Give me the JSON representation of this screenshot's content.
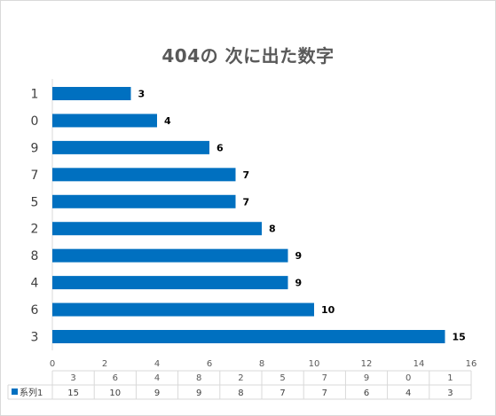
{
  "chart_data": {
    "type": "bar",
    "orientation": "horizontal",
    "title": "404の 次に出た数字",
    "categories": [
      "3",
      "6",
      "4",
      "8",
      "2",
      "5",
      "7",
      "9",
      "0",
      "1"
    ],
    "series": [
      {
        "name": "系列1",
        "values": [
          15,
          10,
          9,
          9,
          8,
          7,
          7,
          6,
          4,
          3
        ],
        "color": "#0070C0"
      }
    ],
    "xlim": [
      0,
      16
    ],
    "x_ticks": [
      0,
      2,
      4,
      6,
      8,
      10,
      12,
      14,
      16
    ],
    "grid": false,
    "data_labels": true,
    "data_table": true
  }
}
